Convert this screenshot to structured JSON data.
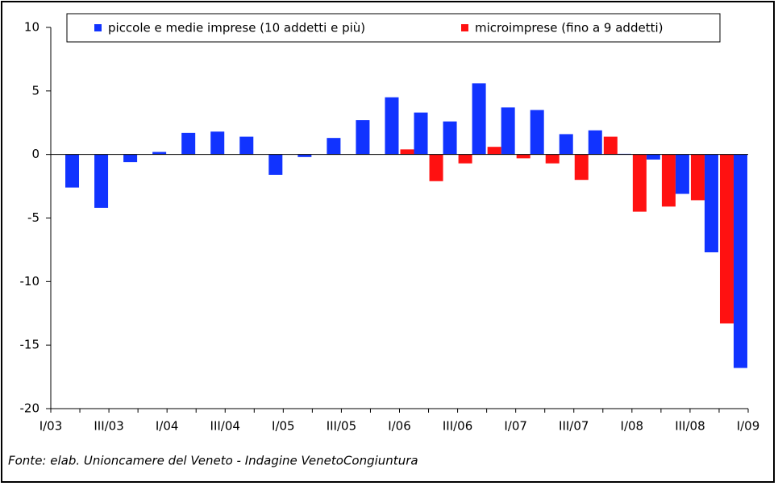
{
  "chart_data": {
    "type": "bar",
    "x_labels": [
      "I/03",
      "III/03",
      "I/04",
      "III/04",
      "I/05",
      "III/05",
      "I/06",
      "III/06",
      "I/07",
      "III/07",
      "I/08",
      "III/08",
      "I/09"
    ],
    "series": [
      {
        "name": "piccole e medie imprese (10 addetti e più)",
        "color": "#1133ff",
        "values": [
          -2.6,
          -4.2,
          -0.6,
          0.2,
          1.7,
          1.8,
          1.4,
          -1.6,
          -0.2,
          1.3,
          2.7,
          4.5,
          3.3,
          2.6,
          5.6,
          3.7,
          3.5,
          1.6,
          1.9,
          0.05,
          -0.4,
          -3.1,
          -7.7,
          -16.8
        ]
      },
      {
        "name": "microimprese (fino a 9 addetti)",
        "color": "#ff1111",
        "values": [
          null,
          null,
          null,
          null,
          null,
          null,
          null,
          null,
          null,
          null,
          null,
          null,
          0.4,
          -2.1,
          -0.7,
          0.6,
          -0.3,
          -0.7,
          -2.0,
          1.4,
          -4.5,
          -4.1,
          -3.6,
          -13.3
        ]
      }
    ],
    "ylim": [
      -20,
      10
    ],
    "yticks": [
      -20,
      -15,
      -10,
      -5,
      0,
      5,
      10
    ],
    "source": "Fonte: elab. Unioncamere del Veneto - Indagine VenetoCongiuntura"
  }
}
